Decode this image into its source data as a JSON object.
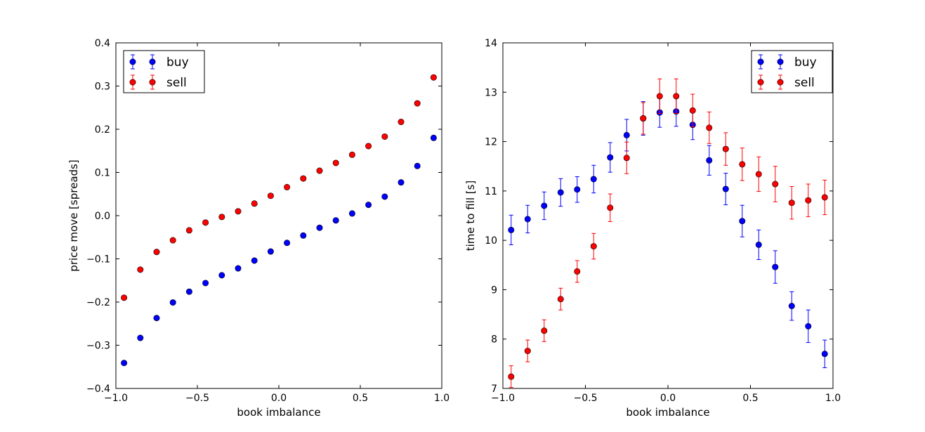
{
  "chart_data": [
    {
      "type": "scatter",
      "xlabel": "book imbalance",
      "ylabel": "price move [spreads]",
      "xlim": [
        -1.0,
        1.0
      ],
      "ylim": [
        -0.4,
        0.4
      ],
      "xticks": [
        "−1.0",
        "−0.5",
        "0.0",
        "0.5",
        "1.0"
      ],
      "xtick_values": [
        -1.0,
        -0.5,
        0.0,
        0.5,
        1.0
      ],
      "yticks": [
        "−0.4",
        "−0.3",
        "−0.2",
        "−0.1",
        "0.0",
        "0.1",
        "0.2",
        "0.3",
        "0.4"
      ],
      "ytick_values": [
        -0.4,
        -0.3,
        -0.2,
        -0.1,
        0.0,
        0.1,
        0.2,
        0.3,
        0.4
      ],
      "legend_position": "top-left",
      "grid": false,
      "x": [
        -0.95,
        -0.85,
        -0.75,
        -0.65,
        -0.55,
        -0.45,
        -0.35,
        -0.25,
        -0.15,
        -0.05,
        0.05,
        0.15,
        0.25,
        0.35,
        0.45,
        0.55,
        0.65,
        0.75,
        0.85,
        0.95
      ],
      "series": [
        {
          "name": "buy",
          "color": "#0000ff",
          "values": [
            -0.341,
            -0.283,
            -0.237,
            -0.201,
            -0.176,
            -0.156,
            -0.138,
            -0.122,
            -0.104,
            -0.083,
            -0.063,
            -0.046,
            -0.028,
            -0.011,
            0.005,
            0.025,
            0.044,
            0.077,
            0.115,
            0.18
          ],
          "errors": [
            0.004,
            0.003,
            0.003,
            0.003,
            0.003,
            0.002,
            0.002,
            0.002,
            0.002,
            0.002,
            0.002,
            0.002,
            0.002,
            0.002,
            0.002,
            0.003,
            0.003,
            0.003,
            0.003,
            0.004
          ]
        },
        {
          "name": "sell",
          "color": "#ff0000",
          "values": [
            -0.19,
            -0.125,
            -0.084,
            -0.057,
            -0.034,
            -0.016,
            -0.003,
            0.01,
            0.028,
            0.046,
            0.066,
            0.086,
            0.104,
            0.122,
            0.141,
            0.161,
            0.183,
            0.217,
            0.26,
            0.32
          ],
          "errors": [
            0.004,
            0.003,
            0.003,
            0.003,
            0.003,
            0.002,
            0.002,
            0.002,
            0.002,
            0.002,
            0.002,
            0.002,
            0.002,
            0.002,
            0.002,
            0.003,
            0.003,
            0.003,
            0.003,
            0.004
          ]
        }
      ]
    },
    {
      "type": "scatter",
      "xlabel": "book imbalance",
      "ylabel": "time to fill [s]",
      "xlim": [
        -1.0,
        1.0
      ],
      "ylim": [
        7,
        14
      ],
      "xticks": [
        "−1.0",
        "−0.5",
        "0.0",
        "0.5",
        "1.0"
      ],
      "xtick_values": [
        -1.0,
        -0.5,
        0.0,
        0.5,
        1.0
      ],
      "yticks": [
        "7",
        "8",
        "9",
        "10",
        "11",
        "12",
        "13",
        "14"
      ],
      "ytick_values": [
        7,
        8,
        9,
        10,
        11,
        12,
        13,
        14
      ],
      "legend_position": "top-right",
      "grid": false,
      "x": [
        -0.95,
        -0.85,
        -0.75,
        -0.65,
        -0.55,
        -0.45,
        -0.35,
        -0.25,
        -0.15,
        -0.05,
        0.05,
        0.15,
        0.25,
        0.35,
        0.45,
        0.55,
        0.65,
        0.75,
        0.85,
        0.95
      ],
      "series": [
        {
          "name": "buy",
          "color": "#0000ff",
          "values": [
            10.21,
            10.43,
            10.7,
            10.97,
            11.03,
            11.24,
            11.68,
            12.13,
            12.47,
            12.59,
            12.61,
            12.34,
            11.62,
            11.04,
            10.39,
            9.91,
            9.46,
            8.67,
            8.26,
            7.7
          ],
          "errors": [
            0.3,
            0.28,
            0.28,
            0.28,
            0.26,
            0.28,
            0.3,
            0.32,
            0.34,
            0.3,
            0.3,
            0.3,
            0.3,
            0.32,
            0.32,
            0.3,
            0.33,
            0.29,
            0.33,
            0.28
          ]
        },
        {
          "name": "sell",
          "color": "#ff0000",
          "values": [
            7.24,
            7.76,
            8.17,
            8.81,
            9.37,
            9.88,
            10.66,
            11.67,
            12.47,
            12.92,
            12.92,
            12.63,
            12.28,
            11.85,
            11.54,
            11.34,
            11.14,
            10.76,
            10.81,
            10.87
          ],
          "errors": [
            0.22,
            0.22,
            0.22,
            0.22,
            0.22,
            0.26,
            0.28,
            0.32,
            0.32,
            0.35,
            0.35,
            0.33,
            0.32,
            0.33,
            0.33,
            0.35,
            0.36,
            0.33,
            0.33,
            0.35
          ]
        }
      ]
    }
  ]
}
